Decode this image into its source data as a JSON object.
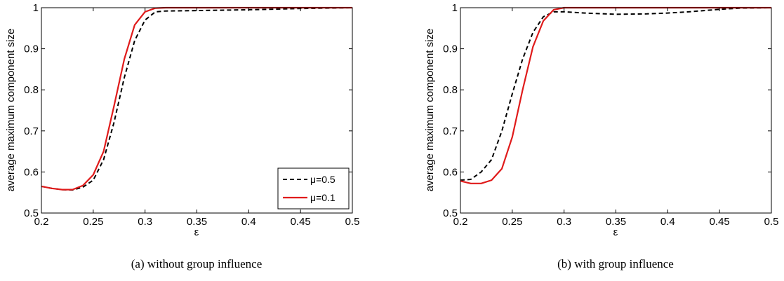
{
  "chart_data": [
    {
      "type": "line",
      "caption": "(a)  without group influence",
      "xlabel": "ε",
      "ylabel": "average maximum component size",
      "xlim": [
        0.2,
        0.5
      ],
      "ylim": [
        0.5,
        1.0
      ],
      "xticks": [
        "0.2",
        "0.25",
        "0.3",
        "0.35",
        "0.4",
        "0.45",
        "0.5"
      ],
      "yticks": [
        "0.5",
        "0.6",
        "0.7",
        "0.8",
        "0.9",
        "1"
      ],
      "grid": false,
      "legend": {
        "position": "bottom-right",
        "entries": [
          "μ=0.5",
          "μ=0.1"
        ]
      },
      "series": [
        {
          "name": "μ=0.5",
          "style": "dashed",
          "color": "#000000",
          "x": [
            0.2,
            0.21,
            0.22,
            0.23,
            0.24,
            0.25,
            0.26,
            0.27,
            0.28,
            0.29,
            0.3,
            0.31,
            0.32,
            0.35,
            0.4,
            0.45,
            0.5
          ],
          "y": [
            0.565,
            0.56,
            0.557,
            0.556,
            0.563,
            0.58,
            0.63,
            0.72,
            0.83,
            0.92,
            0.97,
            0.99,
            0.992,
            0.993,
            0.995,
            0.998,
            1.0
          ]
        },
        {
          "name": "μ=0.1",
          "style": "solid",
          "color": "#e01b1b",
          "x": [
            0.2,
            0.21,
            0.22,
            0.23,
            0.24,
            0.25,
            0.26,
            0.27,
            0.28,
            0.29,
            0.3,
            0.31,
            0.32,
            0.35,
            0.4,
            0.45,
            0.5
          ],
          "y": [
            0.565,
            0.56,
            0.557,
            0.557,
            0.567,
            0.593,
            0.65,
            0.76,
            0.875,
            0.958,
            0.99,
            0.999,
            1.0,
            1.0,
            1.0,
            1.0,
            1.0
          ]
        }
      ]
    },
    {
      "type": "line",
      "caption": "(b)  with group influence",
      "xlabel": "ε",
      "ylabel": "average maximum component size",
      "xlim": [
        0.2,
        0.5
      ],
      "ylim": [
        0.5,
        1.0
      ],
      "xticks": [
        "0.2",
        "0.25",
        "0.3",
        "0.35",
        "0.4",
        "0.45",
        "0.5"
      ],
      "yticks": [
        "0.5",
        "0.6",
        "0.7",
        "0.8",
        "0.9",
        "1"
      ],
      "grid": false,
      "legend": null,
      "series": [
        {
          "name": "μ=0.5",
          "style": "dashed",
          "color": "#000000",
          "x": [
            0.2,
            0.21,
            0.22,
            0.23,
            0.24,
            0.25,
            0.26,
            0.27,
            0.28,
            0.29,
            0.3,
            0.32,
            0.35,
            0.38,
            0.4,
            0.42,
            0.45,
            0.47,
            0.5
          ],
          "y": [
            0.58,
            0.582,
            0.6,
            0.63,
            0.7,
            0.79,
            0.875,
            0.94,
            0.978,
            0.99,
            0.99,
            0.987,
            0.984,
            0.985,
            0.987,
            0.99,
            0.996,
            0.999,
            1.0
          ]
        },
        {
          "name": "μ=0.1",
          "style": "solid",
          "color": "#e01b1b",
          "x": [
            0.2,
            0.21,
            0.22,
            0.23,
            0.24,
            0.25,
            0.26,
            0.27,
            0.28,
            0.29,
            0.3,
            0.32,
            0.35,
            0.4,
            0.45,
            0.5
          ],
          "y": [
            0.578,
            0.572,
            0.572,
            0.58,
            0.608,
            0.685,
            0.8,
            0.905,
            0.968,
            0.995,
            1.0,
            1.0,
            1.0,
            1.0,
            1.0,
            1.0
          ]
        }
      ]
    }
  ]
}
